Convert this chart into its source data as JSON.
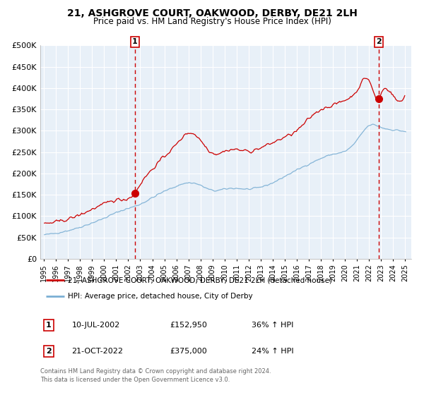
{
  "title": "21, ASHGROVE COURT, OAKWOOD, DERBY, DE21 2LH",
  "subtitle": "Price paid vs. HM Land Registry's House Price Index (HPI)",
  "title_fontsize": 10,
  "subtitle_fontsize": 8.5,
  "ylabel_ticks": [
    "£0",
    "£50K",
    "£100K",
    "£150K",
    "£200K",
    "£250K",
    "£300K",
    "£350K",
    "£400K",
    "£450K",
    "£500K"
  ],
  "ytick_values": [
    0,
    50000,
    100000,
    150000,
    200000,
    250000,
    300000,
    350000,
    400000,
    450000,
    500000
  ],
  "xlim_min": 1994.7,
  "xlim_max": 2025.5,
  "ylim": [
    0,
    500000
  ],
  "x_years": [
    1995,
    1996,
    1997,
    1998,
    1999,
    2000,
    2001,
    2002,
    2003,
    2004,
    2005,
    2006,
    2007,
    2008,
    2009,
    2010,
    2011,
    2012,
    2013,
    2014,
    2015,
    2016,
    2017,
    2018,
    2019,
    2020,
    2021,
    2022,
    2023,
    2024,
    2025
  ],
  "vline1_x": 2002.54,
  "vline2_x": 2022.8,
  "sale1_x": 2002.54,
  "sale1_y": 152950,
  "sale2_x": 2022.8,
  "sale2_y": 375000,
  "red_color": "#cc0000",
  "blue_color": "#7bafd4",
  "plot_bg_color": "#e8f0f8",
  "bg_color": "#ffffff",
  "grid_color": "#ffffff",
  "legend_line1": "21, ASHGROVE COURT, OAKWOOD, DERBY, DE21 2LH (detached house)",
  "legend_line2": "HPI: Average price, detached house, City of Derby",
  "table_row1": [
    "1",
    "10-JUL-2002",
    "£152,950",
    "36% ↑ HPI"
  ],
  "table_row2": [
    "2",
    "21-OCT-2022",
    "£375,000",
    "24% ↑ HPI"
  ],
  "footnote": "Contains HM Land Registry data © Crown copyright and database right 2024.\nThis data is licensed under the Open Government Licence v3.0."
}
